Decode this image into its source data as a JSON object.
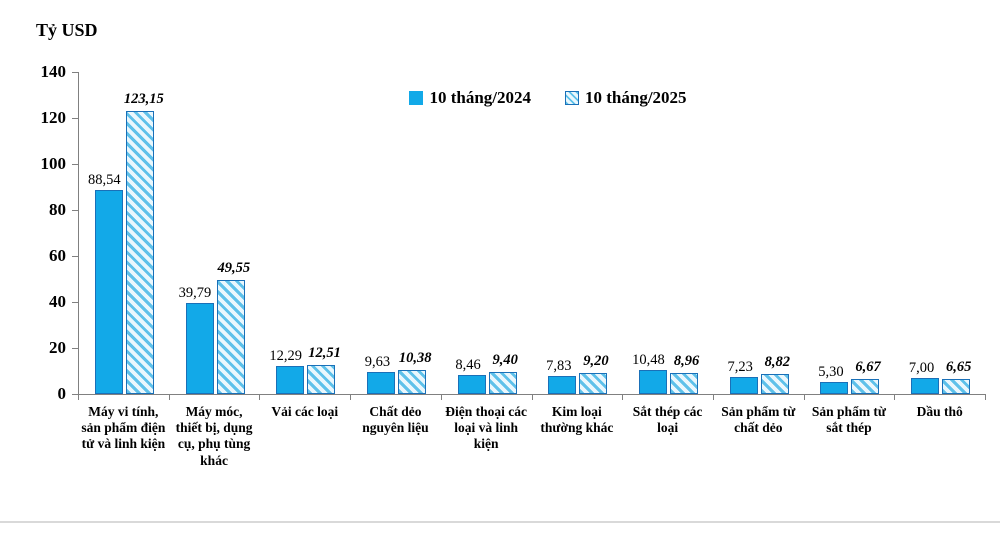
{
  "chart": {
    "unit_label": "Tỷ USD"
  },
  "chart_data": {
    "type": "bar",
    "title": "",
    "ylabel": "Tỷ USD",
    "xlabel": "",
    "ylim": [
      0,
      140
    ],
    "yticks": [
      0,
      20,
      40,
      60,
      80,
      100,
      120,
      140
    ],
    "grid": false,
    "legend_position": "top-center",
    "categories": [
      "Máy vi tính, sản phẩm điện tử và linh kiện",
      "Máy móc, thiết bị, dụng cụ, phụ tùng khác",
      "Vải các loại",
      "Chất dẻo nguyên liệu",
      "Điện thoại các loại và linh kiện",
      "Kim loại thường khác",
      "Sắt thép các loại",
      "Sản phẩm từ chất dẻo",
      "Sản phẩm từ sắt thép",
      "Dầu thô"
    ],
    "series": [
      {
        "name": "10 tháng/2024",
        "values": [
          88.54,
          39.79,
          12.29,
          9.63,
          8.46,
          7.83,
          10.48,
          7.23,
          5.3,
          7.0
        ],
        "labels": [
          "88,54",
          "39,79",
          "12,29",
          "9,63",
          "8,46",
          "7,83",
          "10,48",
          "7,23",
          "5,30",
          "7,00"
        ]
      },
      {
        "name": "10 tháng/2025",
        "values": [
          123.15,
          49.55,
          12.51,
          10.38,
          9.4,
          9.2,
          8.96,
          8.82,
          6.67,
          6.65
        ],
        "labels": [
          "123,15",
          "49,55",
          "12,51",
          "10,38",
          "9,40",
          "9,20",
          "8,96",
          "8,82",
          "6,67",
          "6,65"
        ]
      }
    ],
    "colors": {
      "series1_fill": "#12a9e8",
      "bar_border": "#1a70b8",
      "series2_hatch_stripe": "#5ec1ea",
      "series2_hatch_bg": "#eaf7fd",
      "axis": "#808080",
      "text": "#000000"
    }
  }
}
